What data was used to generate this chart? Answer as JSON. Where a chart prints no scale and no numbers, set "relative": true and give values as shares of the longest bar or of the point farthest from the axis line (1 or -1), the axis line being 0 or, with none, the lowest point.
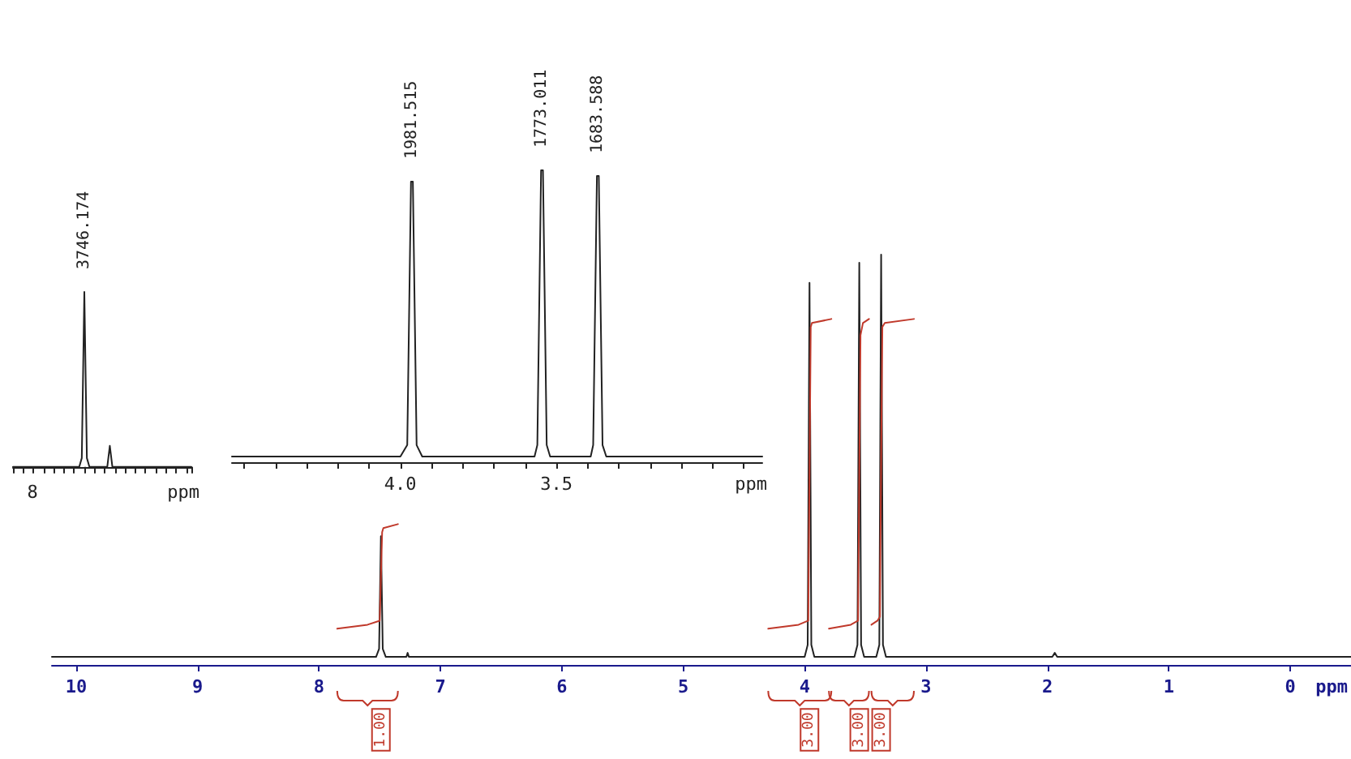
{
  "chart_data": [
    {
      "type": "line",
      "relative": true,
      "xlabel": "ppm",
      "categories": [
        null,
        null,
        null,
        null,
        null,
        null,
        null,
        null,
        null,
        null,
        null,
        null,
        null,
        null,
        null,
        null,
        null,
        null,
        null,
        null,
        null,
        null,
        null,
        null,
        null,
        null,
        null,
        null,
        null,
        null,
        null,
        null,
        null,
        null,
        null,
        null,
        null,
        null,
        null,
        null,
        null,
        null,
        null,
        null,
        null,
        null,
        null,
        null,
        null,
        null,
        null,
        null,
        null,
        null,
        null,
        null,
        null,
        null,
        null,
        null,
        null,
        null,
        null,
        null,
        null,
        null,
        null,
        null,
        null,
        null,
        null
      ],
      "series": [
        {
          "color": "#222222",
          "values": [
            0,
            0,
            0,
            0,
            0,
            0,
            0,
            0,
            0,
            0,
            0,
            0,
            0,
            0,
            0,
            0,
            0,
            0,
            0,
            0,
            0,
            0,
            0,
            0,
            0,
            0,
            0,
            0.05,
            1,
            0.05,
            0,
            0,
            0,
            0,
            0,
            0,
            0,
            0,
            0.12,
            0,
            0,
            0,
            0,
            0,
            0,
            0,
            0,
            0,
            0,
            0,
            0,
            0,
            0,
            0,
            0,
            0,
            0,
            0,
            0,
            0,
            0,
            0,
            0,
            0,
            0,
            0,
            0,
            0,
            0,
            0,
            0
          ]
        }
      ],
      "annotations": [
        "3746.174",
        "8"
      ]
    },
    {
      "type": "line",
      "relative": true,
      "xlabel": "ppm",
      "xlim": [
        4.54,
        2.84
      ],
      "xticks": [
        {
          "value": 4.5,
          "label": null
        },
        {
          "value": 4.4,
          "label": null
        },
        {
          "value": 4.3,
          "label": null
        },
        {
          "value": 4.2,
          "label": null
        },
        {
          "value": 4.1,
          "label": null
        },
        {
          "value": 4.0,
          "label": "4.0"
        },
        {
          "value": 3.9,
          "label": null
        },
        {
          "value": 3.8,
          "label": null
        },
        {
          "value": 3.7,
          "label": null
        },
        {
          "value": 3.6,
          "label": null
        },
        3.5,
        {
          "value": 3.4,
          "label": null
        },
        {
          "value": 3.3,
          "label": null
        },
        {
          "value": 3.2,
          "label": null
        },
        {
          "value": 3.1,
          "label": null
        },
        {
          "value": 3.0,
          "label": null
        },
        {
          "value": 2.9,
          "label": null
        }
      ],
      "series": [
        {
          "color": "#222222",
          "x": [
            4.54,
            4.0,
            3.978,
            3.966,
            3.963,
            3.96,
            3.948,
            3.93,
            3.57,
            3.561,
            3.549,
            3.546,
            3.543,
            3.531,
            3.52,
            3.39,
            3.382,
            3.37,
            3.367,
            3.364,
            3.352,
            3.34,
            2.84
          ],
          "values": [
            0,
            0,
            0.04,
            0.96,
            0.96,
            0.96,
            0.04,
            0,
            0,
            0.04,
            1,
            1,
            1,
            0.04,
            0,
            0,
            0.04,
            0.98,
            0.98,
            0.98,
            0.04,
            0,
            0
          ]
        }
      ],
      "annotations": [
        {
          "text": "1981.515",
          "x": 3.963,
          "y": 0.96
        },
        {
          "text": "1773.011",
          "x": 3.546,
          "y": 1
        },
        {
          "text": "1683.588",
          "x": 3.367,
          "y": 0.98
        }
      ]
    },
    {
      "type": "line",
      "relative": true,
      "xlabel": "ppm",
      "xlim": [
        10.2,
        -0.5
      ],
      "xticks": [
        10,
        9,
        8,
        7,
        6,
        5,
        4,
        3,
        2,
        1,
        0
      ],
      "series": [
        {
          "color": "#222222",
          "x": [
            10.2,
            7.53,
            7.505,
            7.49,
            7.475,
            7.45,
            7.28,
            7.27,
            7.26,
            4.0,
            3.975,
            3.96,
            3.945,
            3.92,
            3.59,
            3.565,
            3.55,
            3.535,
            3.51,
            3.41,
            3.385,
            3.37,
            3.355,
            3.33,
            1.96,
            1.94,
            1.92,
            -0.5
          ],
          "values": [
            0,
            0,
            0.02,
            0.3,
            0.02,
            0,
            0,
            0.01,
            0,
            0,
            0.03,
            0.93,
            0.03,
            0,
            0,
            0.03,
            0.98,
            0.03,
            0,
            0,
            0.03,
            1,
            0.03,
            0,
            0,
            0.01,
            0,
            0
          ]
        },
        {
          "color": "#c0392b",
          "x": [
            7.85,
            7.6,
            7.5,
            7.49,
            7.48,
            7.47,
            7.35
          ],
          "values": [
            0.07,
            0.08,
            0.09,
            0.2,
            0.31,
            0.32,
            0.33
          ]
        },
        {
          "color": "#c0392b",
          "x": [
            4.3,
            4.05,
            3.97,
            3.96,
            3.95,
            3.94,
            3.78
          ],
          "values": [
            0.07,
            0.08,
            0.09,
            0.45,
            0.82,
            0.83,
            0.84
          ]
        },
        {
          "color": "#c0392b",
          "x": [
            3.8,
            3.62,
            3.56,
            3.55,
            3.54,
            3.52,
            3.47
          ],
          "values": [
            0.07,
            0.08,
            0.09,
            0.45,
            0.8,
            0.83,
            0.84
          ]
        },
        {
          "color": "#c0392b",
          "x": [
            3.45,
            3.4,
            3.38,
            3.37,
            3.36,
            3.34,
            3.1
          ],
          "values": [
            0.08,
            0.09,
            0.1,
            0.5,
            0.82,
            0.83,
            0.84
          ]
        }
      ],
      "annotations": [
        "1.00",
        "3.00",
        "3.00",
        "3.00"
      ]
    }
  ]
}
